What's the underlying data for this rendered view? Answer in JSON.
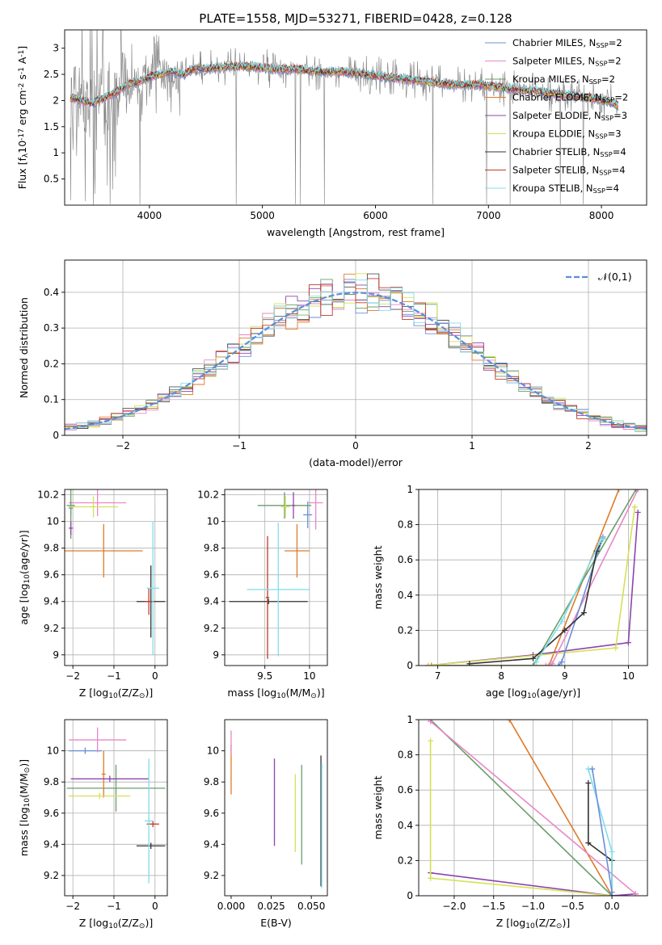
{
  "figure": {
    "title": "PLATE=1558, MJD=53271, FIBERID=0428, z=0.128"
  },
  "legend_entries": [
    {
      "label": "Chabrier MILES, N$_{SSP}$=2",
      "color": "#6a8fd8"
    },
    {
      "label": "Salpeter MILES, N$_{SSP}$=2",
      "color": "#e887c6"
    },
    {
      "label": "Kroupa MILES, N$_{SSP}$=2",
      "color": "#6b9e6b"
    },
    {
      "label": "Chabrier ELODIE, N$_{SSP}$=2",
      "color": "#e07a2a"
    },
    {
      "label": "Salpeter ELODIE, N$_{SSP}$=3",
      "color": "#8e44ad"
    },
    {
      "label": "Kroupa ELODIE, N$_{SSP}$=3",
      "color": "#d4e157"
    },
    {
      "label": "Chabrier STELIB, N$_{SSP}$=4",
      "color": "#333333"
    },
    {
      "label": "Salpeter STELIB, N$_{SSP}$=4",
      "color": "#c0392b"
    },
    {
      "label": "Kroupa STELIB, N$_{SSP}$=4",
      "color": "#80deea"
    }
  ],
  "chart_data": [
    {
      "id": "spectrum",
      "type": "line",
      "title": "PLATE=1558, MJD=53271, FIBERID=0428, z=0.128",
      "xlabel": "wavelength [Angstrom, rest frame]",
      "ylabel": "Flux [f$_\\lambda$10$^{-17}$ erg cm$^{-2}$ s$^{-1}$ A$^{-1}$]",
      "xlim": [
        3250,
        8400
      ],
      "ylim": [
        0,
        3.35
      ],
      "xticks": [
        4000,
        5000,
        6000,
        7000,
        8000
      ],
      "yticks": [
        0.5,
        1.0,
        1.5,
        2.0,
        2.5,
        3.0
      ],
      "grid": false,
      "legend_position": "top-right",
      "model_shape": {
        "x": [
          3300,
          3400,
          3500,
          3600,
          3700,
          3800,
          3900,
          4000,
          4100,
          4200,
          4300,
          4400,
          4500,
          4700,
          4900,
          5100,
          5300,
          5500,
          5700,
          5900,
          6100,
          6300,
          6500,
          6700,
          6900,
          7100,
          7300,
          7500,
          7700,
          7900,
          8100,
          8150
        ],
        "y": [
          2.05,
          2.0,
          1.95,
          2.05,
          2.15,
          2.3,
          2.35,
          2.45,
          2.5,
          2.55,
          2.5,
          2.6,
          2.6,
          2.65,
          2.65,
          2.6,
          2.6,
          2.55,
          2.55,
          2.5,
          2.45,
          2.4,
          2.35,
          2.3,
          2.3,
          2.25,
          2.2,
          2.15,
          2.1,
          2.05,
          1.95,
          1.9
        ]
      },
      "series": [
        {
          "name": "Chabrier MILES, N$_{SSP}$=2",
          "color": "#6a8fd8"
        },
        {
          "name": "Salpeter MILES, N$_{SSP}$=2",
          "color": "#e887c6"
        },
        {
          "name": "Kroupa MILES, N$_{SSP}$=2",
          "color": "#6b9e6b"
        },
        {
          "name": "Chabrier ELODIE, N$_{SSP}$=2",
          "color": "#e07a2a"
        },
        {
          "name": "Salpeter ELODIE, N$_{SSP}$=3",
          "color": "#8e44ad"
        },
        {
          "name": "Kroupa ELODIE, N$_{SSP}$=3",
          "color": "#d4e157"
        },
        {
          "name": "Chabrier STELIB, N$_{SSP}$=4",
          "color": "#333333"
        },
        {
          "name": "Salpeter STELIB, N$_{SSP}$=4",
          "color": "#c0392b"
        },
        {
          "name": "Kroupa STELIB, N$_{SSP}$=4",
          "color": "#80deea"
        }
      ]
    },
    {
      "id": "residuals",
      "type": "line",
      "xlabel": "(data-model)/error",
      "ylabel": "Normed distribution",
      "xlim": [
        -2.5,
        2.5
      ],
      "ylim": [
        0,
        0.49
      ],
      "xticks": [
        -2,
        -1,
        0,
        1,
        2
      ],
      "yticks": [
        0.0,
        0.1,
        0.2,
        0.3,
        0.4
      ],
      "grid": true,
      "legend_position": "top-right",
      "gaussian_label": "$\\mathcal{N}(0,1)$",
      "gaussian_color": "#5b8dd9",
      "histogram_bin_width": 0.1,
      "histogram_colors": [
        "#6a8fd8",
        "#e887c6",
        "#6b9e6b",
        "#e07a2a",
        "#8e44ad",
        "#d4e157",
        "#555555",
        "#c0392b",
        "#80deea"
      ]
    },
    {
      "id": "age_vs_Z",
      "type": "scatter",
      "xlabel": "Z [log$_{10}$(Z/Z$_\\odot$)]",
      "ylabel": "age  [log$_{10}$(age/yr)]",
      "xlim": [
        -2.2,
        0.3
      ],
      "ylim": [
        8.92,
        10.24
      ],
      "xticks": [
        -2,
        -1,
        0
      ],
      "yticks": [
        9.0,
        9.2,
        9.4,
        9.6,
        9.8,
        10.0,
        10.2
      ],
      "grid": true,
      "points": [
        {
          "color": "#6a8fd8",
          "x": -2.05,
          "xerr": 0.05,
          "y": 10.1,
          "yerr": 0.05
        },
        {
          "color": "#e887c6",
          "x": -1.4,
          "xerr": 0.7,
          "y": 10.14,
          "yerr": 0.1
        },
        {
          "color": "#6b9e6b",
          "x": -2.05,
          "xerr": 0.1,
          "y": 10.12,
          "yerr": 0.25
        },
        {
          "color": "#e07a2a",
          "x": -1.25,
          "xerr": 0.95,
          "y": 9.78,
          "yerr": 0.2
        },
        {
          "color": "#8e44ad",
          "x": -2.05,
          "xerr": 0.05,
          "y": 9.95,
          "yerr": 0.05
        },
        {
          "color": "#d4e157",
          "x": -1.5,
          "xerr": 0.6,
          "y": 10.11,
          "yerr": 0.08
        },
        {
          "color": "#333333",
          "x": -0.1,
          "xerr": 0.35,
          "y": 9.4,
          "yerr": 0.27
        },
        {
          "color": "#c0392b",
          "x": -0.15,
          "xerr": 0.1,
          "y": 9.4,
          "yerr": 0.1
        },
        {
          "color": "#80deea",
          "x": -0.05,
          "xerr": 0.15,
          "y": 9.5,
          "yerr": 0.5
        }
      ]
    },
    {
      "id": "age_vs_mass",
      "type": "scatter",
      "xlabel": "mass [log$_{10}$(M/M$_\\odot$)]",
      "xlim": [
        9.05,
        10.2
      ],
      "ylim": [
        8.92,
        10.24
      ],
      "xticks": [
        9.5,
        10.0
      ],
      "yticks": [
        9.0,
        9.2,
        9.4,
        9.6,
        9.8,
        10.0,
        10.2
      ],
      "grid": true,
      "points": [
        {
          "color": "#6a8fd8",
          "x": 9.98,
          "xerr": 0.05,
          "y": 10.05,
          "yerr": 0.1
        },
        {
          "color": "#e887c6",
          "x": 10.07,
          "xerr": 0.08,
          "y": 10.14,
          "yerr": 0.2
        },
        {
          "color": "#6b9e6b",
          "x": 9.72,
          "xerr": 0.3,
          "y": 10.12,
          "yerr": 0.1
        },
        {
          "color": "#e07a2a",
          "x": 9.86,
          "xerr": 0.14,
          "y": 9.78,
          "yerr": 0.2
        },
        {
          "color": "#8e44ad",
          "x": 9.82,
          "xerr": 0.02,
          "y": 10.12,
          "yerr": 0.1
        },
        {
          "color": "#d4e157",
          "x": 9.73,
          "xerr": 0.05,
          "y": 10.11,
          "yerr": 0.08
        },
        {
          "color": "#333333",
          "x": 9.54,
          "xerr": 0.44,
          "y": 9.4,
          "yerr": 0.02
        },
        {
          "color": "#c0392b",
          "x": 9.53,
          "xerr": 0.02,
          "y": 9.43,
          "yerr": 0.46
        },
        {
          "color": "#80deea",
          "x": 9.65,
          "xerr": 0.35,
          "y": 9.49,
          "yerr": 0.5
        }
      ]
    },
    {
      "id": "mass_weight_vs_age",
      "type": "line",
      "xlabel": "age  [log$_{10}$(age/yr)]",
      "ylabel": "mass weight",
      "xlim": [
        6.7,
        10.3
      ],
      "ylim": [
        0,
        1
      ],
      "xticks": [
        7,
        8,
        9,
        10
      ],
      "yticks": [
        0.0,
        0.2,
        0.4,
        0.6,
        0.8,
        1.0
      ],
      "grid": true,
      "series": [
        {
          "color": "#e07a2a",
          "x": [
            6.9,
            8.75,
            9.85
          ],
          "y": [
            0.0,
            0.0,
            1.0
          ]
        },
        {
          "color": "#6b9e6b",
          "x": [
            6.85,
            8.5,
            10.12
          ],
          "y": [
            0.0,
            0.0,
            1.0
          ]
        },
        {
          "color": "#8e44ad",
          "x": [
            6.85,
            8.5,
            10.0,
            10.15
          ],
          "y": [
            0.0,
            0.06,
            0.13,
            0.87
          ]
        },
        {
          "color": "#d4e157",
          "x": [
            6.85,
            9.8,
            10.1
          ],
          "y": [
            0.0,
            0.1,
            0.9
          ]
        },
        {
          "color": "#e887c6",
          "x": [
            8.7,
            8.8,
            10.15
          ],
          "y": [
            0.0,
            0.01,
            1.0
          ]
        },
        {
          "color": "#6a8fd8",
          "x": [
            8.9,
            8.95,
            9.6
          ],
          "y": [
            0.0,
            0.02,
            0.73
          ]
        },
        {
          "color": "#333333",
          "x": [
            7.5,
            8.5,
            9.0,
            9.3,
            9.5,
            9.6
          ],
          "y": [
            0.01,
            0.04,
            0.2,
            0.3,
            0.65,
            0.72
          ]
        },
        {
          "color": "#80deea",
          "x": [
            8.55,
            8.95,
            9.55,
            9.6
          ],
          "y": [
            0.02,
            0.25,
            0.7,
            0.72
          ]
        }
      ]
    },
    {
      "id": "mass_vs_Z",
      "type": "scatter",
      "xlabel": "Z [log$_{10}$(Z/Z$_\\odot$)]",
      "ylabel": "mass [log$_{10}$(M/M$_\\odot$)]",
      "xlim": [
        -2.2,
        0.3
      ],
      "ylim": [
        9.07,
        10.2
      ],
      "xticks": [
        -2,
        -1,
        0
      ],
      "yticks": [
        9.2,
        9.4,
        9.6,
        9.8,
        10.0
      ],
      "grid": true,
      "points": [
        {
          "color": "#6a8fd8",
          "x": -1.7,
          "xerr": 0.4,
          "y": 10.0,
          "yerr": 0.02
        },
        {
          "color": "#e887c6",
          "x": -1.4,
          "xerr": 0.7,
          "y": 10.07,
          "yerr": 0.08
        },
        {
          "color": "#6b9e6b",
          "x": -0.95,
          "xerr": 1.2,
          "y": 9.76,
          "yerr": 0.15
        },
        {
          "color": "#e07a2a",
          "x": -1.25,
          "xerr": 0.05,
          "y": 9.85,
          "yerr": 0.15
        },
        {
          "color": "#8e44ad",
          "x": -1.1,
          "xerr": 0.95,
          "y": 9.82,
          "yerr": 0.02
        },
        {
          "color": "#d4e157",
          "x": -1.35,
          "xerr": 0.75,
          "y": 9.71,
          "yerr": 0.02
        },
        {
          "color": "#333333",
          "x": -0.1,
          "xerr": 0.35,
          "y": 9.39,
          "yerr": 0.02
        },
        {
          "color": "#c0392b",
          "x": -0.05,
          "xerr": 0.15,
          "y": 9.53,
          "yerr": 0.02
        },
        {
          "color": "#80deea",
          "x": -0.15,
          "xerr": 0.1,
          "y": 9.55,
          "yerr": 0.4
        }
      ]
    },
    {
      "id": "mass_vs_ebv",
      "type": "scatter",
      "xlabel": "E(B-V)",
      "xlim": [
        -0.004,
        0.06
      ],
      "ylim": [
        9.07,
        10.2
      ],
      "xticks": [
        0.0,
        0.025,
        0.05
      ],
      "xtick_labels": [
        "0.000",
        "0.025",
        "0.050"
      ],
      "yticks": [
        9.2,
        9.4,
        9.6,
        9.8,
        10.0
      ],
      "grid": false,
      "points": [
        {
          "color": "#e07a2a",
          "x": 0.0,
          "y": 9.88,
          "yerr": 0.16
        },
        {
          "color": "#e887c6",
          "x": 0.0,
          "y": 10.05,
          "yerr": 0.08
        },
        {
          "color": "#8e44ad",
          "x": 0.027,
          "y": 9.67,
          "yerr": 0.28
        },
        {
          "color": "#d4e157",
          "x": 0.04,
          "y": 9.6,
          "yerr": 0.25
        },
        {
          "color": "#6b9e6b",
          "x": 0.044,
          "y": 9.59,
          "yerr": 0.32
        },
        {
          "color": "#333333",
          "x": 0.056,
          "y": 9.55,
          "yerr": 0.42
        },
        {
          "color": "#80deea",
          "x": 0.0565,
          "y": 9.52,
          "yerr": 0.4
        }
      ]
    },
    {
      "id": "mass_weight_vs_Z",
      "type": "line",
      "xlabel": "Z [log$_{10}$(Z/Z$_\\odot$)]",
      "ylabel": "mass weight",
      "xlim": [
        -2.45,
        0.45
      ],
      "ylim": [
        0,
        1
      ],
      "xticks": [
        -2.0,
        -1.5,
        -1.0,
        -0.5,
        0.0
      ],
      "xtick_labels": [
        "−2.0",
        "−1.5",
        "−1.0",
        "−0.5",
        "0.0"
      ],
      "yticks": [
        0.0,
        0.2,
        0.4,
        0.6,
        0.8,
        1.0
      ],
      "grid": true,
      "series": [
        {
          "color": "#e07a2a",
          "x": [
            -1.3,
            0.0
          ],
          "y": [
            1.0,
            0.0
          ]
        },
        {
          "color": "#6b9e6b",
          "x": [
            -2.3,
            0.0
          ],
          "y": [
            1.0,
            0.0
          ]
        },
        {
          "color": "#8e44ad",
          "x": [
            -2.3,
            0.0,
            0.3
          ],
          "y": [
            0.13,
            0.0,
            0.01
          ]
        },
        {
          "color": "#d4e157",
          "x": [
            -2.3,
            -2.3,
            0.0
          ],
          "y": [
            0.88,
            0.1,
            0.0
          ]
        },
        {
          "color": "#e887c6",
          "x": [
            -2.3,
            0.3
          ],
          "y": [
            0.99,
            0.01
          ]
        },
        {
          "color": "#333333",
          "x": [
            -0.3,
            -0.3,
            0.0,
            0.0
          ],
          "y": [
            0.64,
            0.3,
            0.2,
            0.0
          ]
        },
        {
          "color": "#80deea",
          "x": [
            -0.3,
            0.0,
            0.0
          ],
          "y": [
            0.72,
            0.25,
            0.02
          ]
        },
        {
          "color": "#6a8fd8",
          "x": [
            -0.25,
            0.0
          ],
          "y": [
            0.72,
            0.02
          ]
        }
      ]
    }
  ]
}
